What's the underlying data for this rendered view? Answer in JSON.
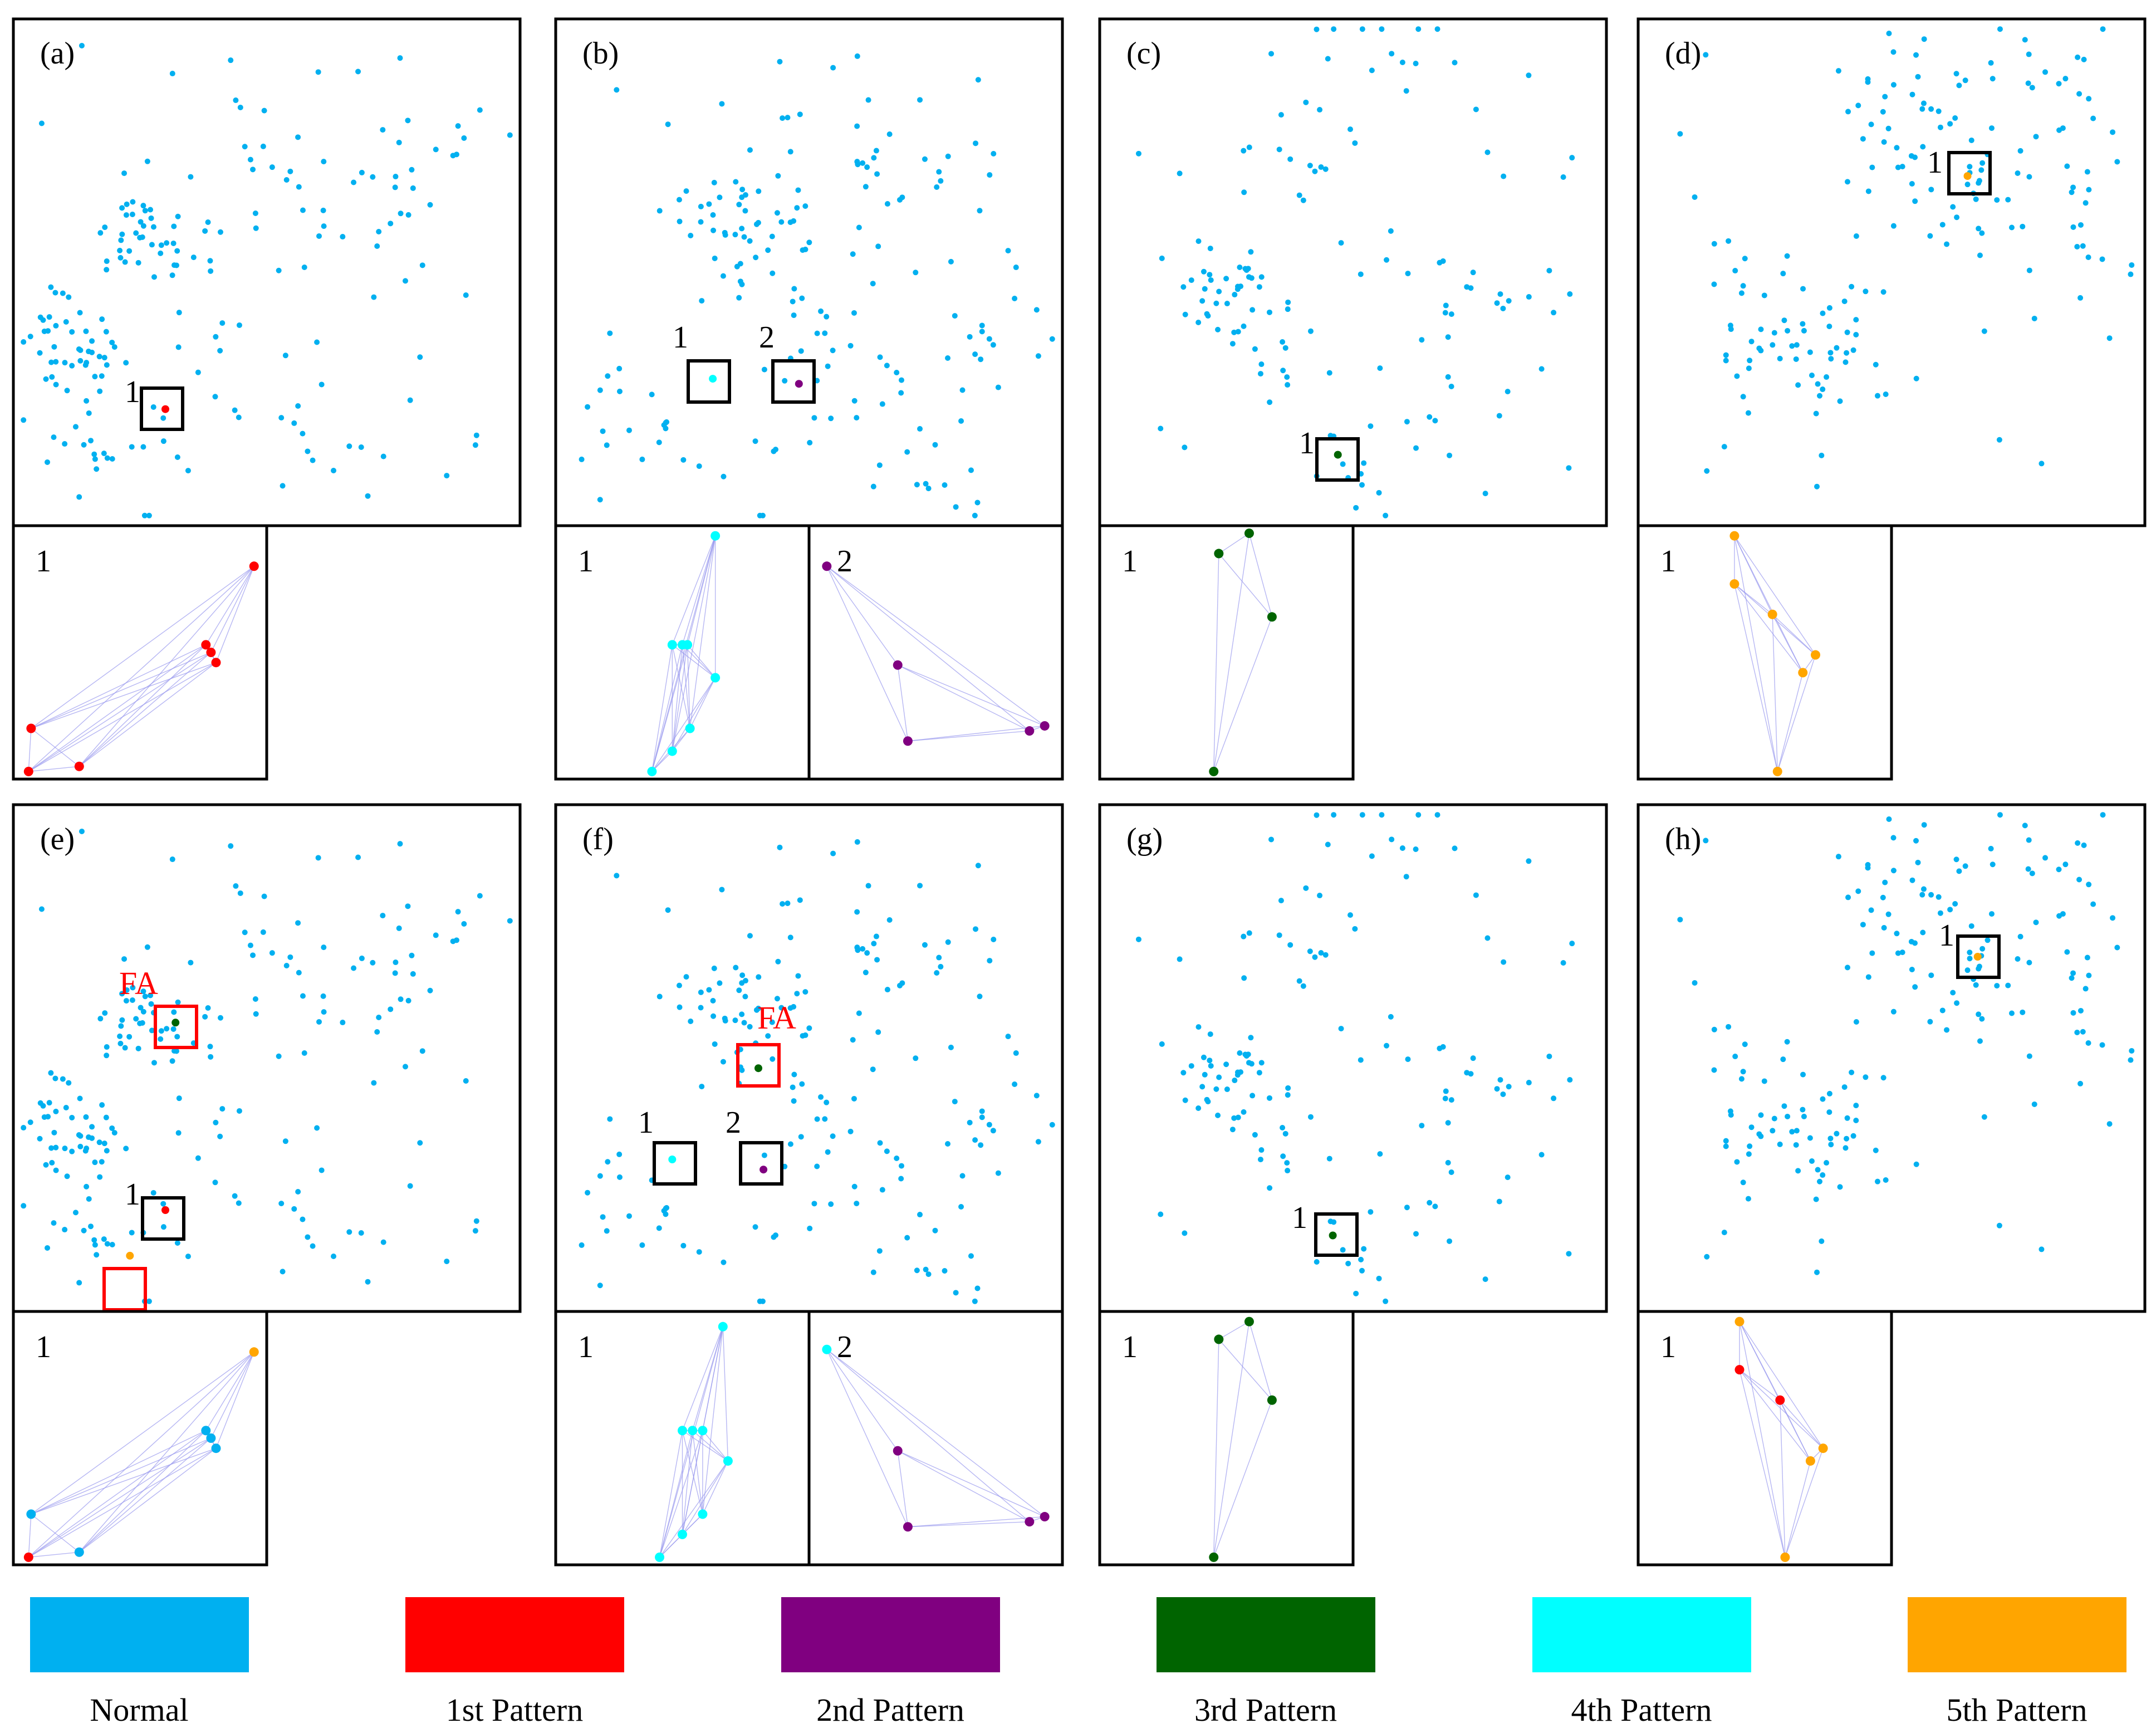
{
  "colors": {
    "normal": "#00B0F0",
    "p1": "#FF0000",
    "p2": "#800080",
    "p3": "#006400",
    "p4": "#00FFFF",
    "p5": "#FFA500",
    "frame": "#000000",
    "false_alarm": "#FF0000",
    "edge": "#9999EE"
  },
  "legend": [
    {
      "label": "Normal",
      "color": "#00B0F0"
    },
    {
      "label": "1st Pattern",
      "color": "#FF0000"
    },
    {
      "label": "2nd Pattern",
      "color": "#800080"
    },
    {
      "label": "3rd Pattern",
      "color": "#006400"
    },
    {
      "label": "4th Pattern",
      "color": "#00FFFF"
    },
    {
      "label": "5th Pattern",
      "color": "#FFA500"
    }
  ],
  "fa_label": "FA",
  "panels": [
    {
      "label": "(a)",
      "seed": 11,
      "clusters": [
        [
          0.12,
          0.65,
          0.05,
          45
        ],
        [
          0.27,
          0.42,
          0.06,
          40
        ],
        [
          0.55,
          0.32,
          0.1,
          25
        ],
        [
          0.78,
          0.3,
          0.08,
          12
        ],
        [
          0.16,
          0.85,
          0.06,
          15
        ],
        [
          0.35,
          0.75,
          0.1,
          10
        ],
        [
          0.6,
          0.85,
          0.05,
          6
        ],
        [
          0.9,
          0.2,
          0.05,
          5
        ],
        [
          0.3,
          0.9,
          0.05,
          5
        ]
      ],
      "boxes": [
        {
          "num": "1",
          "color": "black"
        }
      ],
      "marks": [
        [
          "#FF0000",
          0.3,
          0.77
        ]
      ],
      "zooms": [
        {
          "num": "1",
          "pts": [
            [
              0.95,
              0.16,
              "p1"
            ],
            [
              0.76,
              0.47,
              "p1"
            ],
            [
              0.78,
              0.5,
              "p1"
            ],
            [
              0.8,
              0.54,
              "p1"
            ],
            [
              0.07,
              0.8,
              "p1"
            ],
            [
              0.06,
              0.97,
              "p1"
            ],
            [
              0.26,
              0.95,
              "p1"
            ]
          ]
        }
      ]
    },
    {
      "label": "(b)",
      "seed": 23,
      "clusters": [
        [
          0.42,
          0.42,
          0.05,
          30
        ],
        [
          0.68,
          0.35,
          0.08,
          25
        ],
        [
          0.32,
          0.38,
          0.06,
          15
        ],
        [
          0.5,
          0.72,
          0.12,
          35
        ],
        [
          0.15,
          0.78,
          0.05,
          10
        ],
        [
          0.8,
          0.62,
          0.1,
          12
        ],
        [
          0.75,
          0.95,
          0.05,
          8
        ],
        [
          0.92,
          0.5,
          0.03,
          3
        ]
      ],
      "boxes": [
        {
          "num": "1",
          "color": "black"
        },
        {
          "num": "2",
          "color": "black"
        }
      ],
      "marks": [
        [
          "#00FFFF",
          0.31,
          0.71
        ],
        [
          "#800080",
          0.48,
          0.72
        ]
      ],
      "zooms": [
        {
          "num": "1",
          "pts": [
            [
              0.63,
              0.04,
              "p4"
            ],
            [
              0.46,
              0.47,
              "p4"
            ],
            [
              0.5,
              0.47,
              "p4"
            ],
            [
              0.52,
              0.47,
              "p4"
            ],
            [
              0.63,
              0.6,
              "p4"
            ],
            [
              0.53,
              0.8,
              "p4"
            ],
            [
              0.46,
              0.89,
              "p4"
            ],
            [
              0.38,
              0.97,
              "p4"
            ]
          ]
        },
        {
          "num": "2",
          "pts": [
            [
              0.07,
              0.16,
              "p2"
            ],
            [
              0.35,
              0.55,
              "p2"
            ],
            [
              0.39,
              0.85,
              "p2"
            ],
            [
              0.87,
              0.81,
              "p2"
            ],
            [
              0.93,
              0.79,
              "p2"
            ]
          ]
        }
      ]
    },
    {
      "label": "(c)",
      "seed": 37,
      "clusters": [
        [
          0.55,
          0.05,
          0.08,
          12
        ],
        [
          0.35,
          0.3,
          0.05,
          12
        ],
        [
          0.25,
          0.54,
          0.04,
          30
        ],
        [
          0.35,
          0.65,
          0.05,
          12
        ],
        [
          0.75,
          0.55,
          0.06,
          15
        ],
        [
          0.66,
          0.82,
          0.08,
          10
        ],
        [
          0.48,
          0.86,
          0.05,
          8
        ]
      ],
      "boxes": [
        {
          "num": "1",
          "color": "black"
        }
      ],
      "marks": [
        [
          "#006400",
          0.47,
          0.86
        ]
      ],
      "zooms": [
        {
          "num": "1",
          "pts": [
            [
              0.59,
              0.03,
              "p3"
            ],
            [
              0.47,
              0.11,
              "p3"
            ],
            [
              0.68,
              0.36,
              "p3"
            ],
            [
              0.45,
              0.97,
              "p3"
            ]
          ]
        }
      ]
    },
    {
      "label": "(d)",
      "seed": 51,
      "clusters": [
        [
          0.56,
          0.18,
          0.1,
          40
        ],
        [
          0.3,
          0.65,
          0.1,
          45
        ],
        [
          0.7,
          0.35,
          0.1,
          30
        ],
        [
          0.9,
          0.4,
          0.05,
          10
        ],
        [
          0.2,
          0.5,
          0.05,
          8
        ],
        [
          0.85,
          0.1,
          0.05,
          8
        ]
      ],
      "boxes": [
        {
          "num": "1",
          "color": "black"
        }
      ],
      "marks": [
        [
          "#FFA500",
          0.65,
          0.31
        ]
      ],
      "zooms": [
        {
          "num": "1",
          "pts": [
            [
              0.38,
              0.04,
              "p5"
            ],
            [
              0.38,
              0.23,
              "p5"
            ],
            [
              0.53,
              0.35,
              "p5"
            ],
            [
              0.7,
              0.51,
              "p5"
            ],
            [
              0.65,
              0.58,
              "p5"
            ],
            [
              0.55,
              0.97,
              "p5"
            ]
          ]
        }
      ]
    },
    {
      "label": "(e)",
      "seed": 11,
      "clusters": [
        [
          0.12,
          0.65,
          0.05,
          45
        ],
        [
          0.27,
          0.42,
          0.06,
          40
        ],
        [
          0.55,
          0.32,
          0.1,
          25
        ],
        [
          0.78,
          0.3,
          0.08,
          12
        ],
        [
          0.16,
          0.85,
          0.06,
          15
        ],
        [
          0.35,
          0.75,
          0.1,
          10
        ],
        [
          0.6,
          0.85,
          0.05,
          6
        ],
        [
          0.9,
          0.2,
          0.05,
          5
        ],
        [
          0.3,
          0.9,
          0.05,
          5
        ]
      ],
      "boxes": [
        {
          "num": "1",
          "color": "black"
        },
        {
          "num": "",
          "color": "red",
          "fa": true
        },
        {
          "num": "",
          "color": "red"
        }
      ],
      "marks": [
        [
          "#FF0000",
          0.3,
          0.8
        ],
        [
          "#FFA500",
          0.23,
          0.89
        ],
        [
          "#006400",
          0.32,
          0.43
        ]
      ],
      "zooms": [
        {
          "num": "1",
          "pts": [
            [
              0.95,
              0.16,
              "p5"
            ],
            [
              0.76,
              0.47,
              "normal"
            ],
            [
              0.78,
              0.5,
              "normal"
            ],
            [
              0.8,
              0.54,
              "normal"
            ],
            [
              0.07,
              0.8,
              "normal"
            ],
            [
              0.06,
              0.97,
              "p1"
            ],
            [
              0.26,
              0.95,
              "normal"
            ]
          ]
        }
      ]
    },
    {
      "label": "(f)",
      "seed": 23,
      "clusters": [
        [
          0.42,
          0.42,
          0.05,
          30
        ],
        [
          0.68,
          0.35,
          0.08,
          25
        ],
        [
          0.32,
          0.38,
          0.06,
          15
        ],
        [
          0.5,
          0.72,
          0.12,
          35
        ],
        [
          0.15,
          0.78,
          0.05,
          10
        ],
        [
          0.8,
          0.62,
          0.1,
          12
        ],
        [
          0.75,
          0.95,
          0.05,
          8
        ],
        [
          0.92,
          0.5,
          0.03,
          3
        ]
      ],
      "boxes": [
        {
          "num": "1",
          "color": "black"
        },
        {
          "num": "2",
          "color": "black"
        },
        {
          "num": "",
          "color": "red",
          "fa": true
        }
      ],
      "marks": [
        [
          "#00FFFF",
          0.23,
          0.7
        ],
        [
          "#800080",
          0.41,
          0.72
        ],
        [
          "#006400",
          0.4,
          0.52
        ]
      ],
      "zooms": [
        {
          "num": "1",
          "pts": [
            [
              0.66,
              0.06,
              "p4"
            ],
            [
              0.5,
              0.47,
              "p4"
            ],
            [
              0.54,
              0.47,
              "p4"
            ],
            [
              0.58,
              0.47,
              "p4"
            ],
            [
              0.68,
              0.59,
              "p4"
            ],
            [
              0.58,
              0.8,
              "p4"
            ],
            [
              0.5,
              0.88,
              "p4"
            ],
            [
              0.41,
              0.97,
              "p4"
            ]
          ]
        },
        {
          "num": "2",
          "pts": [
            [
              0.07,
              0.15,
              "p4"
            ],
            [
              0.35,
              0.55,
              "p2"
            ],
            [
              0.39,
              0.85,
              "p2"
            ],
            [
              0.87,
              0.83,
              "p2"
            ],
            [
              0.93,
              0.81,
              "p2"
            ]
          ]
        }
      ]
    },
    {
      "label": "(g)",
      "seed": 37,
      "clusters": [
        [
          0.55,
          0.05,
          0.08,
          12
        ],
        [
          0.35,
          0.3,
          0.05,
          12
        ],
        [
          0.25,
          0.54,
          0.04,
          30
        ],
        [
          0.35,
          0.65,
          0.05,
          12
        ],
        [
          0.75,
          0.55,
          0.06,
          15
        ],
        [
          0.66,
          0.82,
          0.08,
          10
        ],
        [
          0.48,
          0.86,
          0.05,
          8
        ]
      ],
      "boxes": [
        {
          "num": "1",
          "color": "black"
        }
      ],
      "marks": [
        [
          "#006400",
          0.46,
          0.85
        ]
      ],
      "zooms": [
        {
          "num": "1",
          "pts": [
            [
              0.59,
              0.04,
              "p3"
            ],
            [
              0.47,
              0.11,
              "p3"
            ],
            [
              0.68,
              0.35,
              "p3"
            ],
            [
              0.45,
              0.97,
              "p3"
            ]
          ]
        }
      ]
    },
    {
      "label": "(h)",
      "seed": 51,
      "clusters": [
        [
          0.56,
          0.18,
          0.1,
          40
        ],
        [
          0.3,
          0.65,
          0.1,
          45
        ],
        [
          0.7,
          0.35,
          0.1,
          30
        ],
        [
          0.9,
          0.4,
          0.05,
          10
        ],
        [
          0.2,
          0.5,
          0.05,
          8
        ],
        [
          0.85,
          0.1,
          0.05,
          8
        ]
      ],
      "boxes": [
        {
          "num": "1",
          "color": "black"
        }
      ],
      "marks": [
        [
          "#FFA500",
          0.67,
          0.3
        ]
      ],
      "zooms": [
        {
          "num": "1",
          "pts": [
            [
              0.4,
              0.04,
              "p5"
            ],
            [
              0.4,
              0.23,
              "p1"
            ],
            [
              0.56,
              0.35,
              "p1"
            ],
            [
              0.73,
              0.54,
              "p5"
            ],
            [
              0.68,
              0.59,
              "p5"
            ],
            [
              0.58,
              0.97,
              "p5"
            ]
          ]
        }
      ]
    }
  ]
}
